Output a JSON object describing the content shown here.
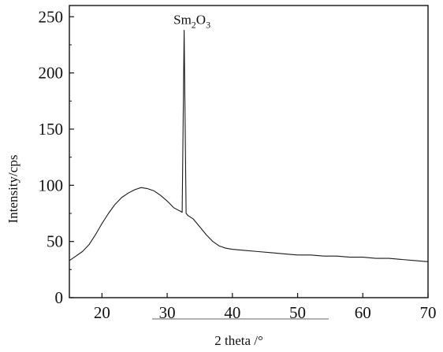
{
  "chart_data": {
    "type": "line",
    "title": "",
    "xlabel": "2 theta /°",
    "ylabel": "Intensity/cps",
    "xlim": [
      15,
      70
    ],
    "ylim": [
      0,
      260
    ],
    "xticks": [
      20,
      30,
      40,
      50,
      60,
      70
    ],
    "yticks": [
      0,
      50,
      100,
      150,
      200,
      250
    ],
    "grid": false,
    "legend": "none",
    "line_color": "#1a1a1a",
    "annotations": [
      {
        "text_main": "Sm",
        "sub1": "2",
        "text_mid": "O",
        "sub2": "3",
        "x": 32.6,
        "y": 238
      }
    ],
    "series": [
      {
        "x": [
          15,
          16,
          17,
          18,
          19,
          20,
          21,
          22,
          23,
          24,
          25,
          26,
          27,
          28,
          29,
          30,
          31,
          32,
          32.3,
          32.6,
          32.9,
          33.2,
          34,
          35,
          36,
          37,
          38,
          39,
          40,
          42,
          44,
          46,
          48,
          50,
          52,
          54,
          56,
          58,
          60,
          62,
          64,
          66,
          68,
          70
        ],
        "y": [
          33,
          37,
          41,
          47,
          56,
          66,
          75,
          83,
          89,
          93,
          96,
          98,
          97,
          95,
          91,
          86,
          80,
          77,
          76,
          238,
          75,
          73,
          70,
          63,
          56,
          50,
          46,
          44,
          43,
          42,
          41,
          40,
          39,
          38,
          38,
          37,
          37,
          36,
          36,
          35,
          35,
          34,
          33,
          32
        ]
      }
    ]
  }
}
